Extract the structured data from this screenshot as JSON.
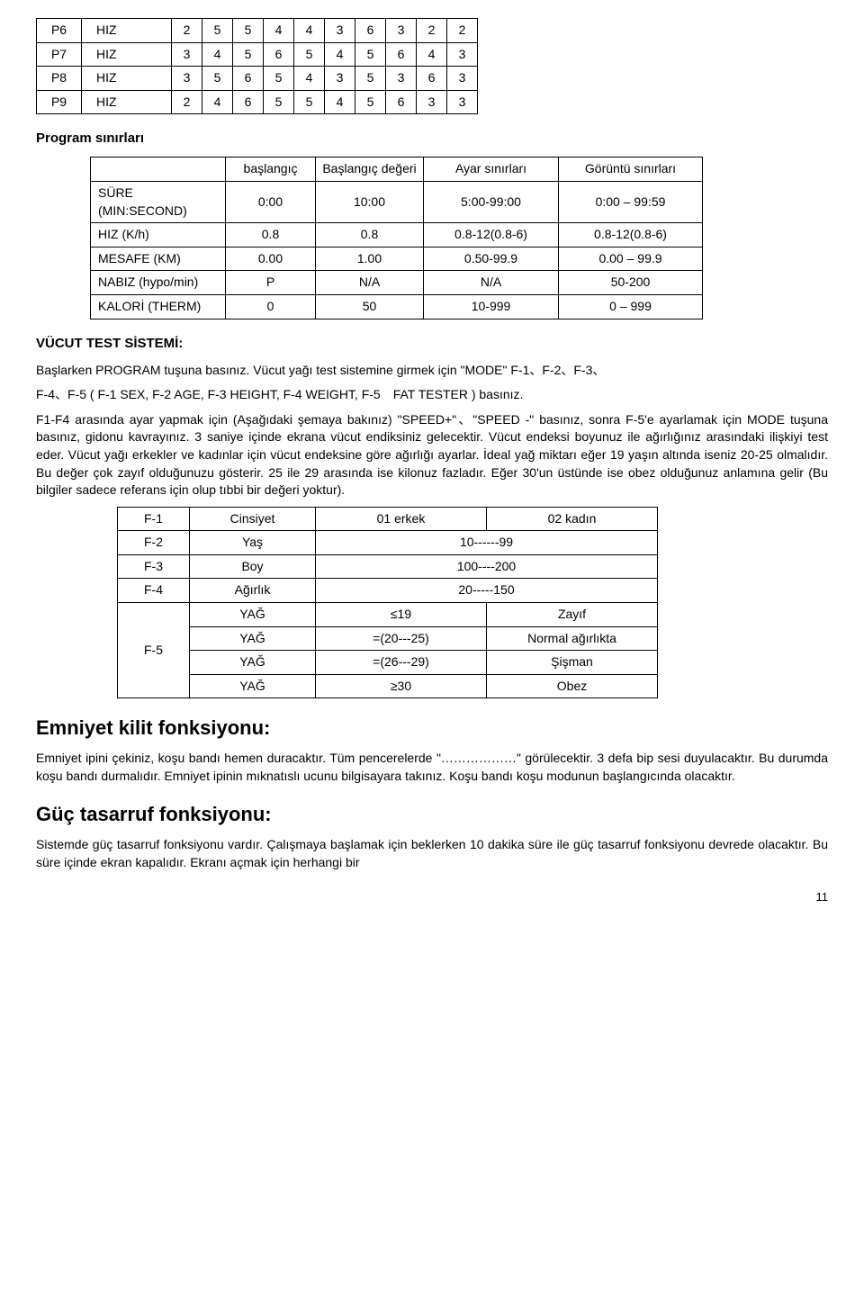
{
  "table1": {
    "rows": [
      [
        "P6",
        "HIZ",
        "2",
        "5",
        "5",
        "4",
        "4",
        "3",
        "6",
        "3",
        "2",
        "2"
      ],
      [
        "P7",
        "HIZ",
        "3",
        "4",
        "5",
        "6",
        "5",
        "4",
        "5",
        "6",
        "4",
        "3"
      ],
      [
        "P8",
        "HIZ",
        "3",
        "5",
        "6",
        "5",
        "4",
        "3",
        "5",
        "3",
        "6",
        "3"
      ],
      [
        "P9",
        "HIZ",
        "2",
        "4",
        "6",
        "5",
        "5",
        "4",
        "5",
        "6",
        "3",
        "3"
      ]
    ]
  },
  "section1_title": "Program sınırları",
  "table2": {
    "header": [
      "",
      "başlangıç",
      "Başlangıç değeri",
      "Ayar sınırları",
      "Görüntü sınırları"
    ],
    "rows": [
      [
        "SÜRE (MIN:SECOND)",
        "0:00",
        "10:00",
        "5:00-99:00",
        "0:00 – 99:59"
      ],
      [
        "HIZ (K/h)",
        "0.8",
        "0.8",
        "0.8-12(0.8-6)",
        "0.8-12(0.8-6)"
      ],
      [
        "MESAFE (KM)",
        "0.00",
        "1.00",
        "0.50-99.9",
        "0.00 – 99.9"
      ],
      [
        "NABIZ (hypo/min)",
        "P",
        "N/A",
        "N/A",
        "50-200"
      ],
      [
        "KALORİ (THERM)",
        "0",
        "50",
        "10-999",
        "0 – 999"
      ]
    ]
  },
  "section2_title": "VÜCUT TEST SİSTEMİ:",
  "para1": "Başlarken PROGRAM tuşuna basınız. Vücut yağı test sistemine girmek için \"MODE\" F-1、F-2、F-3、",
  "para2": "F-4、F-5 ( F-1 SEX, F-2 AGE, F-3 HEIGHT, F-4 WEIGHT, F-5 FAT TESTER ) basınız.",
  "para3": "F1-F4 arasında ayar yapmak için (Aşağıdaki şemaya bakınız) \"SPEED+\"、\"SPEED -\" basınız, sonra F-5'e ayarlamak için MODE tuşuna basınız, gidonu kavrayınız. 3 saniye içinde ekrana vücut endiksiniz gelecektir. Vücut endeksi boyunuz ile ağırlığınız arasındaki ilişkiyi test eder. Vücut yağı erkekler ve kadınlar için vücut endeksine göre ağırlığı ayarlar. İdeal yağ miktarı eğer 19 yaşın altında iseniz 20-25 olmalıdır. Bu değer çok zayıf olduğunuzu gösterir. 25 ile 29 arasında ise kilonuz fazladır. Eğer 30'un üstünde ise obez olduğunuz anlamına gelir (Bu bilgiler sadece referans için olup tıbbi bir değeri yoktur).",
  "table3": {
    "row1": [
      "F-1",
      "Cinsiyet",
      "01 erkek",
      "02 kadın"
    ],
    "row2": [
      "F-2",
      "Yaş",
      "10------99"
    ],
    "row3": [
      "F-3",
      "Boy",
      "100----200"
    ],
    "row4": [
      "F-4",
      "Ağırlık",
      "20-----150"
    ],
    "f5_label": "F-5",
    "f5_rows": [
      [
        "YAĞ",
        "≤19",
        "Zayıf"
      ],
      [
        "YAĞ",
        "=(20---25)",
        "Normal ağırlıkta"
      ],
      [
        "YAĞ",
        "=(26---29)",
        "Şişman"
      ],
      [
        "YAĞ",
        "≥30",
        "Obez"
      ]
    ]
  },
  "section3_title": "Emniyet kilit fonksiyonu:",
  "para4": "Emniyet ipini çekiniz, koşu bandı hemen duracaktır. Tüm pencerelerde \"………………\" görülecektir. 3 defa bip sesi duyulacaktır. Bu durumda koşu bandı durmalıdır. Emniyet ipinin mıknatıslı ucunu bilgisayara takınız. Koşu bandı koşu modunun başlangıcında olacaktır.",
  "section4_title": "Güç tasarruf fonksiyonu:",
  "para5": "Sistemde güç tasarruf fonksiyonu vardır. Çalışmaya başlamak için beklerken 10 dakika süre ile güç tasarruf fonksiyonu devrede olacaktır. Bu süre içinde ekran kapalıdır. Ekranı açmak için herhangi bir",
  "page_number": "11"
}
